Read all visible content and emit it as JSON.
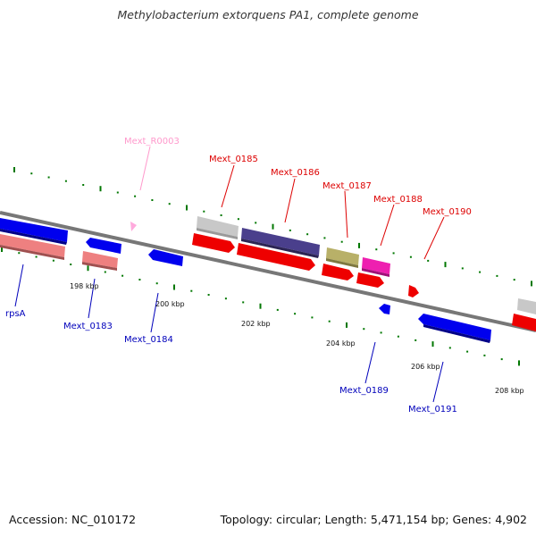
{
  "title": "Methylobacterium extorquens PA1, complete genome",
  "footer": {
    "accession": "Accession: NC_010172",
    "topology": "Topology: circular; Length: 5,471,154 bp; Genes: 4,902"
  },
  "colors": {
    "backbone": "#777777",
    "tick": "#007700",
    "blue": "#0000ee",
    "red": "#ee0000",
    "salmon": "#ee8080",
    "gray": "#c0c0c0",
    "purple": "#4a3f8c",
    "olive": "#b8b068",
    "magenta": "#ee20b0",
    "pink": "#ffaadd",
    "label_red": "#dd0000",
    "label_blue": "#0000bb",
    "label_pink": "#ff99cc"
  },
  "kbp_labels": [
    "198 kbp",
    "200 kbp",
    "202 kbp",
    "204 kbp",
    "206 kbp",
    "208 kbp"
  ],
  "gene_labels": {
    "r0003": "Mext_R0003",
    "g0185": "Mext_0185",
    "g0186": "Mext_0186",
    "g0187": "Mext_0187",
    "g0188": "Mext_0188",
    "g0190": "Mext_0190",
    "rpsA": "rpsA",
    "g0183": "Mext_0183",
    "g0184": "Mext_0184",
    "g0189": "Mext_0189",
    "g0191": "Mext_0191"
  }
}
